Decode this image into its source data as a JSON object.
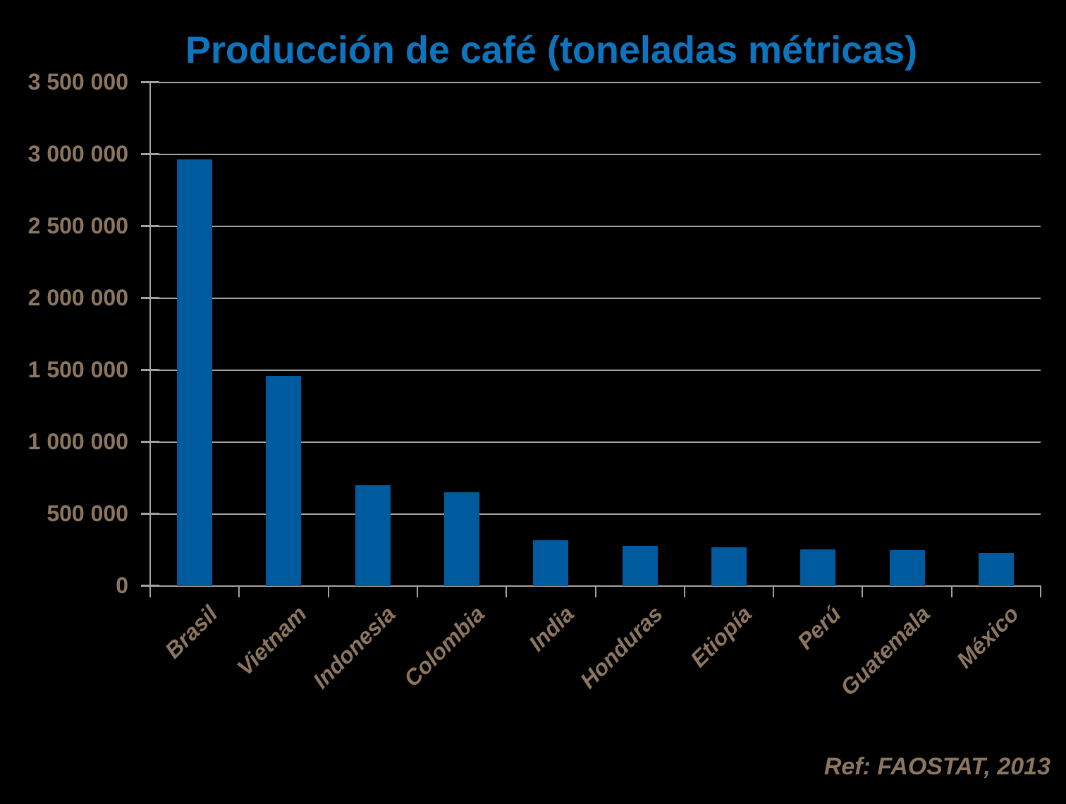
{
  "title": "Producción de café (toneladas métricas)",
  "source_ref": "Ref: FAOSTAT, 2013",
  "colors": {
    "background": "#000000",
    "title": "#0E74BD",
    "bar": "#005A9E",
    "grid": "#A6A29C",
    "axis-text": "#8C7660"
  },
  "chart_data": {
    "type": "bar",
    "title": "Producción de café (toneladas métricas)",
    "categories": [
      "Brasil",
      "Vietnam",
      "Indonesia",
      "Colombia",
      "India",
      "Honduras",
      "Etiopía",
      "Perú",
      "Guatemala",
      "México"
    ],
    "values": [
      2964538,
      1461000,
      698900,
      653160,
      318200,
      280000,
      270000,
      256241,
      248000,
      231596
    ],
    "xlabel": "",
    "ylabel": "",
    "ylim": [
      0,
      3500000
    ],
    "ytick_step": 500000,
    "ytick_labels": [
      "0",
      "500 000",
      "1 000 000",
      "1 500 000",
      "2 000 000",
      "2 500 000",
      "3 000 000",
      "3 500 000"
    ],
    "grid": true,
    "legend": false,
    "bar_rotation_xlabels_deg": 45,
    "annotation": "Ref: FAOSTAT, 2013"
  }
}
